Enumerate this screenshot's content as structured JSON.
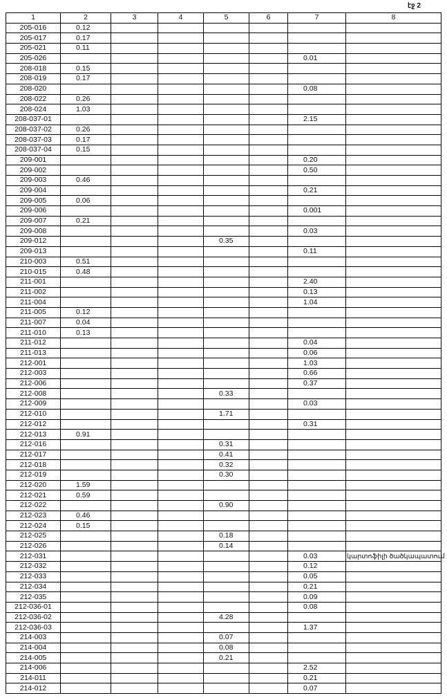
{
  "page_label": "էջ 2",
  "table": {
    "header": [
      "1",
      "2",
      "3",
      "4",
      "5",
      "6",
      "7",
      "8"
    ],
    "rows": [
      {
        "1": "205-016",
        "2": "0.12"
      },
      {
        "1": "205-017",
        "2": "0.17"
      },
      {
        "1": "205-021",
        "2": "0.11"
      },
      {
        "1": "205-026",
        "7": "0.01"
      },
      {
        "1": "208-018",
        "2": "0.15"
      },
      {
        "1": "208-019",
        "2": "0.17"
      },
      {
        "1": "208-020",
        "7": "0.08"
      },
      {
        "1": "208-022",
        "2": "0.26"
      },
      {
        "1": "208-024",
        "2": "1.03"
      },
      {
        "1": "208-037-01",
        "7": "2.15"
      },
      {
        "1": "208-037-02",
        "2": "0.26"
      },
      {
        "1": "208-037-03",
        "2": "0.17"
      },
      {
        "1": "208-037-04",
        "2": "0.15"
      },
      {
        "1": "209-001",
        "7": "0.20"
      },
      {
        "1": "209-002",
        "7": "0.50"
      },
      {
        "1": "209-003",
        "2": "0.46"
      },
      {
        "1": "209-004",
        "7": "0.21"
      },
      {
        "1": "209-005",
        "2": "0.06"
      },
      {
        "1": "209-006",
        "7": "0.001"
      },
      {
        "1": "209-007",
        "2": "0.21"
      },
      {
        "1": "209-008",
        "7": "0.03"
      },
      {
        "1": "209-012",
        "5": "0.35"
      },
      {
        "1": "209-013",
        "7": "0.11"
      },
      {
        "1": "210-003",
        "2": "0.51"
      },
      {
        "1": "210-015",
        "2": "0.48"
      },
      {
        "1": "211-001",
        "7": "2.40"
      },
      {
        "1": "211-002",
        "7": "0.13"
      },
      {
        "1": "211-004",
        "7": "1.04"
      },
      {
        "1": "211-005",
        "2": "0.12"
      },
      {
        "1": "211-007",
        "2": "0.04"
      },
      {
        "1": "211-010",
        "2": "0.13"
      },
      {
        "1": "211-012",
        "7": "0.04"
      },
      {
        "1": "211-013",
        "7": "0.06"
      },
      {
        "1": "212-001",
        "7": "1.03"
      },
      {
        "1": "212-003",
        "7": "0.66"
      },
      {
        "1": "212-006",
        "7": "0.37"
      },
      {
        "1": "212-008",
        "5": "0.33"
      },
      {
        "1": "212-009",
        "7": "0.03"
      },
      {
        "1": "212-010",
        "5": "1.71"
      },
      {
        "1": "212-012",
        "7": "0.31"
      },
      {
        "1": "212-013",
        "2": "0.91"
      },
      {
        "1": "212-016",
        "5": "0.31"
      },
      {
        "1": "212-017",
        "5": "0.41"
      },
      {
        "1": "212-018",
        "5": "0.32"
      },
      {
        "1": "212-019",
        "5": "0.30"
      },
      {
        "1": "212-020",
        "2": "1.59"
      },
      {
        "1": "212-021",
        "2": "0.59"
      },
      {
        "1": "212-022",
        "5": "0.90"
      },
      {
        "1": "212-023",
        "2": "0.46"
      },
      {
        "1": "212-024",
        "2": "0.15"
      },
      {
        "1": "212-025",
        "5": "0.18"
      },
      {
        "1": "212-026",
        "5": "0.14"
      },
      {
        "1": "212-031",
        "7": "0.03",
        "8": "կարտոֆիլի ծածկապատում"
      },
      {
        "1": "212-032",
        "7": "0.12"
      },
      {
        "1": "212-033",
        "7": "0.05"
      },
      {
        "1": "212-034",
        "7": "0.21"
      },
      {
        "1": "212-035",
        "7": "0.09"
      },
      {
        "1": "212-036-01",
        "7": "0.08"
      },
      {
        "1": "212-036-02",
        "5": "4.28"
      },
      {
        "1": "212-036-03",
        "7": "1.37"
      },
      {
        "1": "214-003",
        "5": "0.07"
      },
      {
        "1": "214-004",
        "5": "0.08"
      },
      {
        "1": "214-005",
        "5": "0.21"
      },
      {
        "1": "214-006",
        "7": "2.52"
      },
      {
        "1": "214-011",
        "7": "0.21"
      },
      {
        "1": "214-012",
        "7": "0.07"
      }
    ]
  }
}
